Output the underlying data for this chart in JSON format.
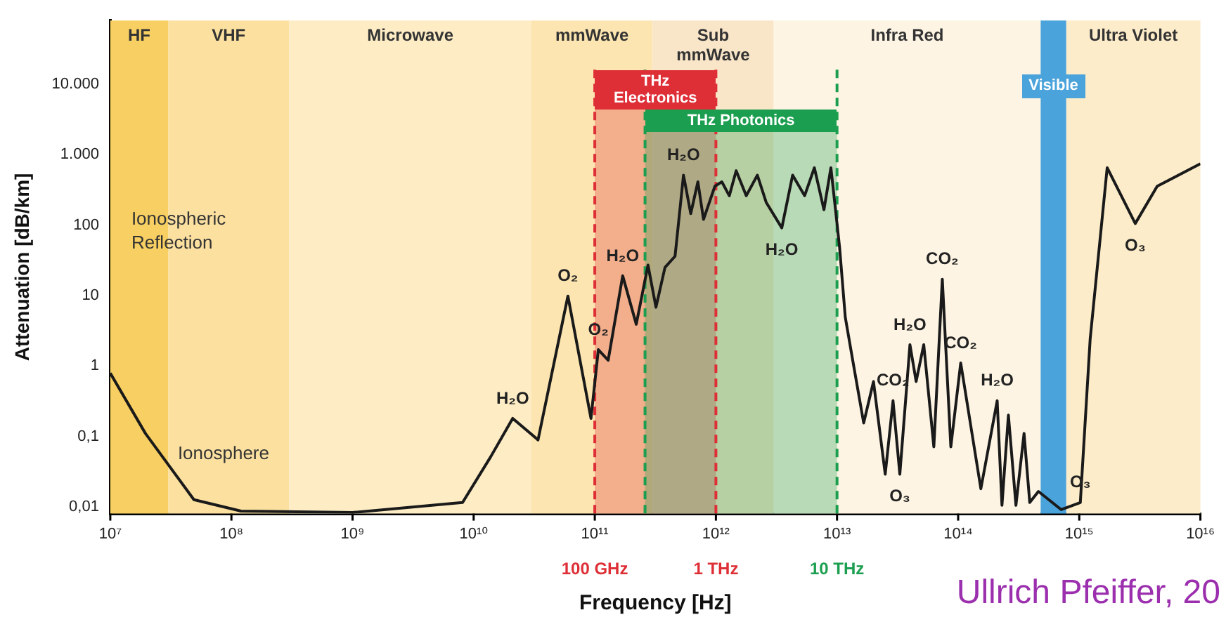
{
  "chart_data": {
    "type": "line",
    "xlabel": "Frequency [Hz]",
    "ylabel": "Attenuation [dB/km]",
    "color": "#1a1a1a",
    "x": [
      10000000.0,
      19500000.0,
      49000000.0,
      120000000.0,
      1000000000.0,
      8100000000.0,
      13800000000.0,
      21000000000.0,
      34000000000.0,
      60000000000.0,
      93000000000.0,
      107000000000.0,
      129000000000.0,
      170000000000.0,
      220000000000.0,
      275000000000.0,
      320000000000.0,
      380000000000.0,
      460000000000.0,
      540000000000.0,
      620000000000.0,
      710000000000.0,
      790000000000.0,
      980000000000.0,
      1120000000000.0,
      1290000000000.0,
      1470000000000.0,
      1780000000000.0,
      2200000000000.0,
      2600000000000.0,
      3500000000000.0,
      4300000000000.0,
      5400000000000.0,
      6500000000000.0,
      7800000000000.0,
      8900000000000.0,
      10000000000000.0,
      10500000000000.0,
      11700000000000.0,
      13800000000000.0,
      16600000000000.0,
      20000000000000.0,
      25000000000000.0,
      29000000000000.0,
      33000000000000.0,
      40000000000000.0,
      45000000000000.0,
      52000000000000.0,
      63000000000000.0,
      74000000000000.0,
      87000000000000.0,
      105000000000000.0,
      154000000000000.0,
      210000000000000.0,
      230000000000000.0,
      260000000000000.0,
      300000000000000.0,
      350000000000000.0,
      390000000000000.0,
      460000000000000.0,
      710000000000000.0,
      1020000000000000.0,
      1230000000000000.0,
      1700000000000000.0,
      2900000000000000.0,
      4400000000000000.0,
      1e+16
    ],
    "values": [
      0.79,
      0.11,
      0.0126,
      0.0087,
      0.0083,
      0.0115,
      0.051,
      0.18,
      0.089,
      9.8,
      0.18,
      1.7,
      1.2,
      19,
      3.9,
      27,
      6.8,
      25,
      36,
      510,
      145,
      410,
      120,
      355,
      410,
      260,
      590,
      260,
      510,
      210,
      91,
      510,
      260,
      650,
      165,
      650,
      105,
      48,
      4.9,
      0.95,
      0.155,
      0.6,
      0.029,
      0.32,
      0.029,
      2,
      0.6,
      2,
      0.071,
      17,
      0.071,
      1.1,
      0.018,
      0.32,
      0.0105,
      0.2,
      0.0105,
      0.11,
      0.0115,
      0.0165,
      0.0091,
      0.0115,
      2.4,
      650,
      105,
      355,
      740
    ],
    "log": "xy",
    "xlim": [
      10000000.0,
      1e+16
    ],
    "ylim": [
      0.008,
      80000
    ],
    "xticks": [
      {
        "value": 10000000.0,
        "label": "10⁷"
      },
      {
        "value": 100000000.0,
        "label": "10⁸"
      },
      {
        "value": 1000000000.0,
        "label": "10⁹"
      },
      {
        "value": 10000000000.0,
        "label": "10¹⁰"
      },
      {
        "value": 100000000000.0,
        "label": "10¹¹"
      },
      {
        "value": 1000000000000.0,
        "label": "10¹²"
      },
      {
        "value": 10000000000000.0,
        "label": "10¹³"
      },
      {
        "value": 100000000000000.0,
        "label": "10¹⁴"
      },
      {
        "value": 1000000000000000.0,
        "label": "10¹⁵"
      },
      {
        "value": 1e+16,
        "label": "10¹⁶"
      }
    ],
    "yticks": [
      {
        "value": 0.01,
        "label": "0,01"
      },
      {
        "value": 0.1,
        "label": "0,1"
      },
      1,
      10,
      100,
      {
        "value": 1000,
        "label": "1.000"
      },
      {
        "value": 10000,
        "label": "10.000"
      }
    ],
    "bands": [
      {
        "axis": "x",
        "from": 10000000.0,
        "to": 30000000.0,
        "label": "HF",
        "color": "#f8cf62"
      },
      {
        "axis": "x",
        "from": 30000000.0,
        "to": 300000000.0,
        "label": "VHF",
        "color": "#fbe0a0"
      },
      {
        "axis": "x",
        "from": 300000000.0,
        "to": 30000000000.0,
        "label": "Microwave",
        "color": "#fdecc4"
      },
      {
        "axis": "x",
        "from": 30000000000.0,
        "to": 300000000000.0,
        "label": "mmWave",
        "color": "#fce5b0"
      },
      {
        "axis": "x",
        "from": 300000000000.0,
        "to": 3000000000000.0,
        "label": "Sub mmWave",
        "color": "#f9e6c8"
      },
      {
        "axis": "x",
        "from": 3000000000000.0,
        "to": 480000000000000.0,
        "label": "Infra Red",
        "color": "#fdf4e3"
      },
      {
        "axis": "x",
        "from": 780000000000000.0,
        "to": 1e+16,
        "label": "Ultra Violet",
        "color": "#fcecc9"
      },
      {
        "axis": "x",
        "from": 480000000000000.0,
        "to": 780000000000000.0,
        "label": "Visible",
        "color": "#4ba3db"
      },
      {
        "axis": "x",
        "from": 100000000000.0,
        "to": 1000000000000.0,
        "label": "THz Electronics",
        "color": "#de2f37"
      },
      {
        "axis": "x",
        "from": 260000000000.0,
        "to": 10000000000000.0,
        "label": "THz Photonics",
        "color": "#1b9e4f"
      }
    ],
    "ref_lines": [
      {
        "axis": "x",
        "value": 100000000000.0,
        "label": "100 GHz",
        "color": "#de2f37",
        "line_style": "dashed"
      },
      {
        "axis": "x",
        "value": 260000000000.0,
        "color": "#1b9e4f",
        "line_style": "dashed"
      },
      {
        "axis": "x",
        "value": 1000000000000.0,
        "label": "1 THz",
        "color": "#de2f37",
        "line_style": "dashed"
      },
      {
        "axis": "x",
        "value": 10000000000000.0,
        "label": "10 THz",
        "color": "#1b9e4f",
        "line_style": "dashed"
      }
    ],
    "annotations": [
      "Ionospheric Reflection",
      "Ionosphere",
      {
        "text": "H₂O",
        "x": 21000000000.0,
        "y": 0.18
      },
      {
        "text": "O₂",
        "x": 60000000000.0,
        "y": 9.8
      },
      {
        "text": "O₂",
        "x": 107000000000.0,
        "y": 1.7
      },
      {
        "text": "H₂O",
        "x": 170000000000.0,
        "y": 19
      },
      {
        "text": "H₂O",
        "x": 540000000000.0,
        "y": 510
      },
      {
        "text": "H₂O",
        "x": 3500000000000.0,
        "y": 91
      },
      {
        "text": "CO₂",
        "x": 29000000000000.0,
        "y": 0.32
      },
      {
        "text": "H₂O",
        "x": 40000000000000.0,
        "y": 2
      },
      {
        "text": "CO₂",
        "x": 74000000000000.0,
        "y": 17
      },
      {
        "text": "CO₂",
        "x": 105000000000000.0,
        "y": 1.1
      },
      {
        "text": "H₂O",
        "x": 210000000000000.0,
        "y": 0.32
      },
      {
        "text": "O₃",
        "x": 33000000000000.0,
        "y": 0.029
      },
      {
        "text": "O₃",
        "x": 1020000000000000.0,
        "y": 0.0115
      },
      {
        "text": "O₃",
        "x": 2900000000000000.0,
        "y": 105
      },
      "Ullrich Pfeiffer, 20"
    ]
  }
}
